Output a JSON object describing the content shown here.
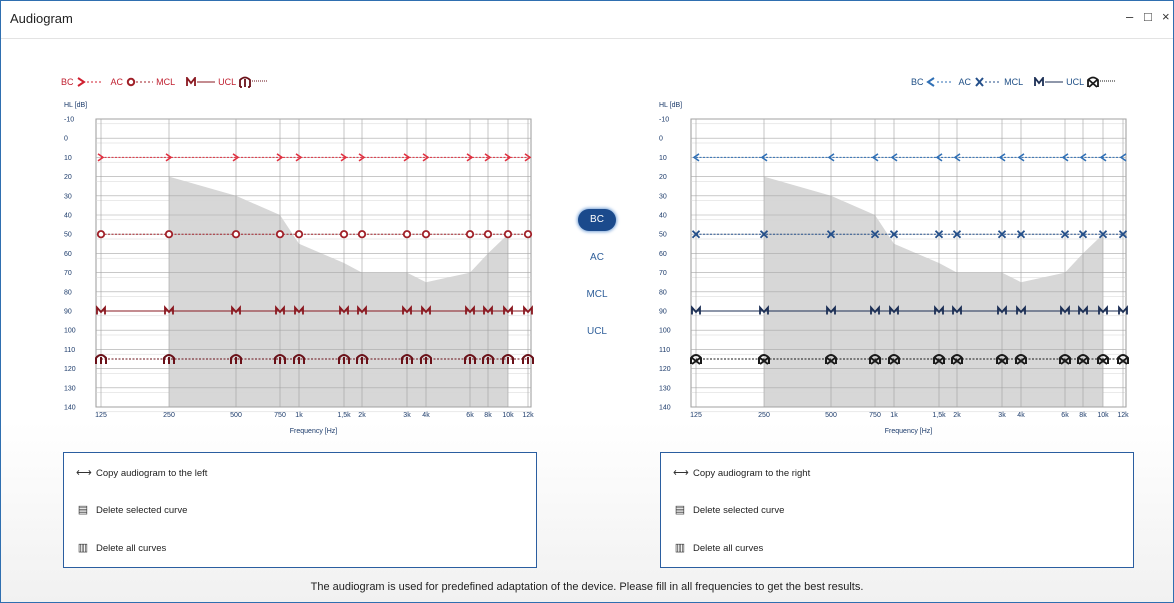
{
  "window": {
    "title": "Audiogram",
    "minimize_glyph": "–",
    "maximize_glyph": "□",
    "close_glyph": "×"
  },
  "legend": {
    "bc": "BC",
    "ac": "AC",
    "mcl": "MCL",
    "ucl": "UCL"
  },
  "chart": {
    "y_axis_label": "HL [dB]",
    "x_axis_label": "Frequency [Hz]",
    "y_ticks": [
      -10,
      0,
      10,
      20,
      30,
      40,
      50,
      60,
      70,
      80,
      90,
      100,
      110,
      120,
      130,
      140
    ],
    "y_range": [
      -10,
      140
    ],
    "frequencies": [
      125,
      250,
      500,
      750,
      1000,
      1500,
      2000,
      3000,
      4000,
      6000,
      8000,
      10000,
      12000
    ],
    "x_tick_labels": [
      "125",
      "250",
      "500",
      "750",
      "1k",
      "1,5k",
      "2k",
      "3k",
      "4k",
      "6k",
      "8k",
      "10k",
      "12k"
    ],
    "banana_upper": [
      20,
      30,
      40,
      55,
      65,
      70,
      70,
      75,
      70,
      60,
      50
    ],
    "banana_lower": 140
  },
  "chart_data": [
    {
      "type": "line",
      "side": "left",
      "xlabel": "Frequency [Hz]",
      "ylabel": "HL [dB]",
      "ylim": [
        -10,
        140
      ],
      "x": [
        125,
        250,
        500,
        750,
        1000,
        1500,
        2000,
        3000,
        4000,
        6000,
        8000,
        10000,
        12000
      ],
      "series": [
        {
          "name": "BC",
          "values": [
            10,
            10,
            10,
            10,
            10,
            10,
            10,
            10,
            10,
            10,
            10,
            10,
            10
          ]
        },
        {
          "name": "AC",
          "values": [
            50,
            50,
            50,
            50,
            50,
            50,
            50,
            50,
            50,
            50,
            50,
            50,
            50
          ]
        },
        {
          "name": "MCL",
          "values": [
            90,
            90,
            90,
            90,
            90,
            90,
            90,
            90,
            90,
            90,
            90,
            90,
            90
          ]
        },
        {
          "name": "UCL",
          "values": [
            115,
            115,
            115,
            115,
            115,
            115,
            115,
            115,
            115,
            115,
            115,
            115,
            115
          ]
        }
      ],
      "colors": {
        "BC": "#e03040",
        "AC": "#a02028",
        "MCL": "#8a1820",
        "UCL": "#6a1018"
      }
    },
    {
      "type": "line",
      "side": "right",
      "xlabel": "Frequency [Hz]",
      "ylabel": "HL [dB]",
      "ylim": [
        -10,
        140
      ],
      "x": [
        125,
        250,
        500,
        750,
        1000,
        1500,
        2000,
        3000,
        4000,
        6000,
        8000,
        10000,
        12000
      ],
      "series": [
        {
          "name": "BC",
          "values": [
            10,
            10,
            10,
            10,
            10,
            10,
            10,
            10,
            10,
            10,
            10,
            10,
            10
          ]
        },
        {
          "name": "AC",
          "values": [
            50,
            50,
            50,
            50,
            50,
            50,
            50,
            50,
            50,
            50,
            50,
            50,
            50
          ]
        },
        {
          "name": "MCL",
          "values": [
            90,
            90,
            90,
            90,
            90,
            90,
            90,
            90,
            90,
            90,
            90,
            90,
            90
          ]
        },
        {
          "name": "UCL",
          "values": [
            115,
            115,
            115,
            115,
            115,
            115,
            115,
            115,
            115,
            115,
            115,
            115,
            115
          ]
        }
      ],
      "colors": {
        "BC": "#2f6fb5",
        "AC": "#244f8a",
        "MCL": "#1c2f55",
        "UCL": "#1a1a1a"
      }
    }
  ],
  "modes": [
    "BC",
    "AC",
    "MCL",
    "UCL"
  ],
  "active_mode": "BC",
  "left_actions": {
    "copy": "Copy audiogram to the left",
    "delete_selected": "Delete selected curve",
    "delete_all": "Delete all curves"
  },
  "right_actions": {
    "copy": "Copy audiogram to the right",
    "delete_selected": "Delete selected curve",
    "delete_all": "Delete all curves"
  },
  "icons": {
    "copy": "double-arrow-icon",
    "delete_selected": "delete-curve-icon",
    "delete_all": "trash-icon"
  },
  "footer_text": "The audiogram is used for predefined adaptation of the device. Please fill in all frequencies to get the best results."
}
